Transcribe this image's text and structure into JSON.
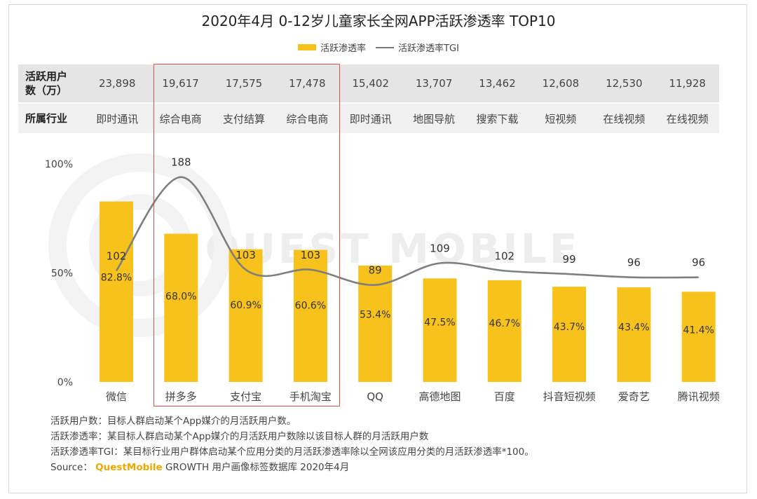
{
  "title": "2020年4月 0-12岁儿童家长全网APP活跃渗透率 TOP10",
  "legend": {
    "bar_label": "活跃渗透率",
    "line_label": "活跃渗透率TGI"
  },
  "table": {
    "users_label_line1": "活跃用户",
    "users_label_line2": "数（万）",
    "industry_label": "所属行业",
    "users": [
      "23,898",
      "19,617",
      "17,575",
      "17,478",
      "15,402",
      "13,707",
      "13,462",
      "12,608",
      "12,530",
      "11,928"
    ],
    "industries": [
      "即时通讯",
      "综合电商",
      "支付结算",
      "综合电商",
      "即时通讯",
      "地图导航",
      "搜索下载",
      "短视频",
      "在线视频",
      "在线视频"
    ]
  },
  "chart_data": {
    "type": "bar",
    "title": "2020年4月 0-12岁儿童家长全网APP活跃渗透率 TOP10",
    "categories": [
      "微信",
      "拼多多",
      "支付宝",
      "手机淘宝",
      "QQ",
      "高德地图",
      "百度",
      "抖音短视频",
      "爱奇艺",
      "腾讯视频"
    ],
    "series": [
      {
        "name": "活跃渗透率",
        "type": "bar",
        "values": [
          82.8,
          68.0,
          60.9,
          60.6,
          53.4,
          47.5,
          46.7,
          43.7,
          43.4,
          41.4
        ],
        "labels": [
          "82.8%",
          "68.0%",
          "60.9%",
          "60.6%",
          "53.4%",
          "47.5%",
          "46.7%",
          "43.7%",
          "43.4%",
          "41.4%"
        ],
        "color": "#f7c21b"
      },
      {
        "name": "活跃渗透率TGI",
        "type": "line",
        "values": [
          102,
          188,
          103,
          103,
          89,
          109,
          102,
          99,
          96,
          96
        ],
        "color": "#7f7f7f"
      }
    ],
    "y_ticks": [
      "0%",
      "50%",
      "100%"
    ],
    "ylim": [
      0,
      100
    ],
    "tgi_ylim": [
      0,
      200
    ],
    "highlight_categories": [
      "拼多多",
      "支付宝",
      "手机淘宝"
    ],
    "highlight_color": "#d9534f",
    "legend_position": "top"
  },
  "notes": {
    "line1": "活跃用户数：目标人群启动某个App媒介的月活跃用户数。",
    "line2": "活跃渗透率：某目标人群启动某个App媒介的月活跃用户数除以该目标人群的月活跃用户数",
    "line3": "活跃渗透率TGI：某目标行业用户群体启动某个应用分类的月活跃渗透率除以全网该应用分类的月活跃渗透率*100。",
    "source_prefix": "Source：",
    "source_brand": "QuestMobile",
    "source_suffix": "GROWTH 用户画像标签数据库 2020年4月"
  },
  "watermark": "QUEST MOBILE"
}
